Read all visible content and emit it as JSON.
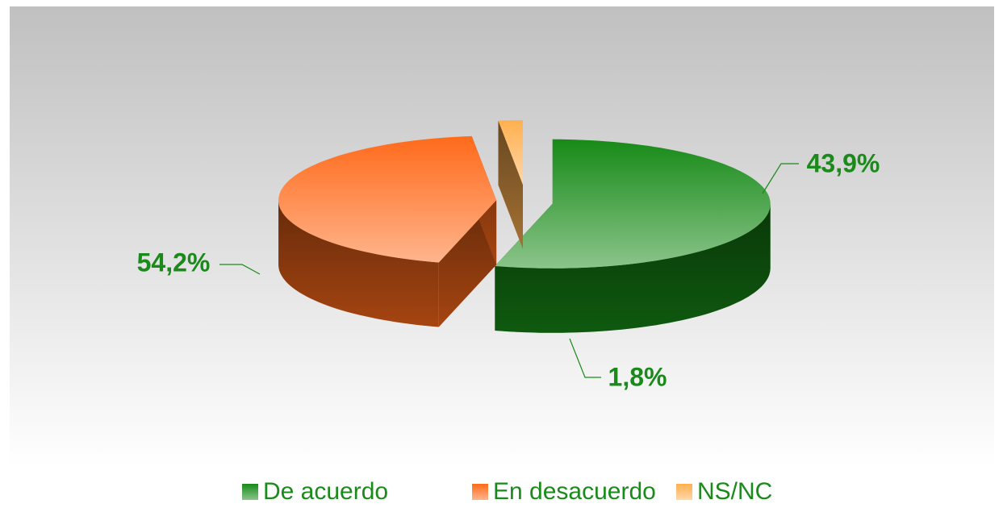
{
  "chart_data": {
    "type": "pie3d",
    "categories": [
      "De acuerdo",
      "En desacuerdo",
      "NS/NC"
    ],
    "values": [
      54.2,
      43.9,
      1.8
    ],
    "value_labels": [
      "54,2%",
      "43,9%",
      "1,8%"
    ],
    "colors": [
      "#178a17",
      "#ff6a1a",
      "#ffb050"
    ],
    "label_color": "#1a8a1a",
    "legend": "bottom"
  }
}
